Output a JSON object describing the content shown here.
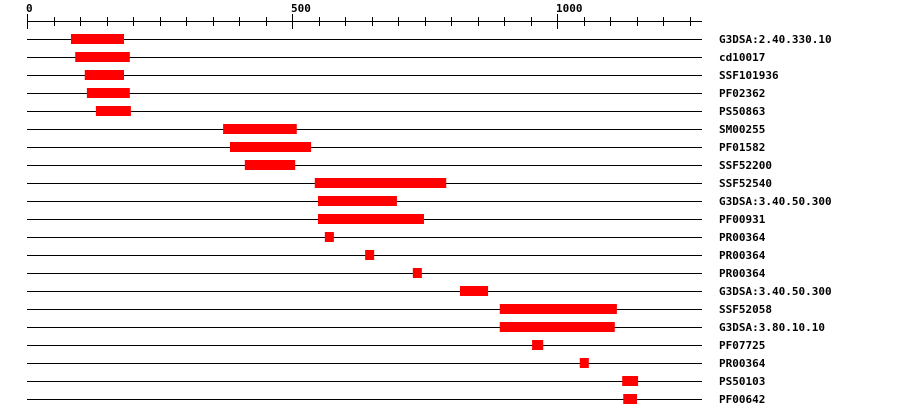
{
  "axis": {
    "min": 0,
    "max": 1275,
    "major_ticks": [
      0,
      500,
      1000
    ],
    "minor_step": 50
  },
  "colors": {
    "domain": "#ff0000",
    "line": "#000000"
  },
  "tracks": [
    {
      "label": "G3DSA:2.40.330.10",
      "start": 83,
      "end": 183
    },
    {
      "label": "cd10017",
      "start": 91,
      "end": 194
    },
    {
      "label": "SSF101936",
      "start": 109,
      "end": 183
    },
    {
      "label": "PF02362",
      "start": 113,
      "end": 194
    },
    {
      "label": "PS50863",
      "start": 130,
      "end": 196
    },
    {
      "label": "SM00255",
      "start": 370,
      "end": 509
    },
    {
      "label": "PF01582",
      "start": 383,
      "end": 536
    },
    {
      "label": "SSF52200",
      "start": 411,
      "end": 506
    },
    {
      "label": "SSF52540",
      "start": 543,
      "end": 791
    },
    {
      "label": "G3DSA:3.40.50.300",
      "start": 549,
      "end": 698
    },
    {
      "label": "PF00931",
      "start": 549,
      "end": 749
    },
    {
      "label": "PR00364",
      "start": 562,
      "end": 579
    },
    {
      "label": "PR00364",
      "start": 638,
      "end": 655
    },
    {
      "label": "PR00364",
      "start": 728,
      "end": 745
    },
    {
      "label": "G3DSA:3.40.50.300",
      "start": 817,
      "end": 870
    },
    {
      "label": "SSF52058",
      "start": 892,
      "end": 1113
    },
    {
      "label": "G3DSA:3.80.10.10",
      "start": 892,
      "end": 1109
    },
    {
      "label": "PF07725",
      "start": 953,
      "end": 974
    },
    {
      "label": "PR00364",
      "start": 1043,
      "end": 1060
    },
    {
      "label": "PS50103",
      "start": 1123,
      "end": 1153
    },
    {
      "label": "PF00642",
      "start": 1125,
      "end": 1151
    }
  ]
}
